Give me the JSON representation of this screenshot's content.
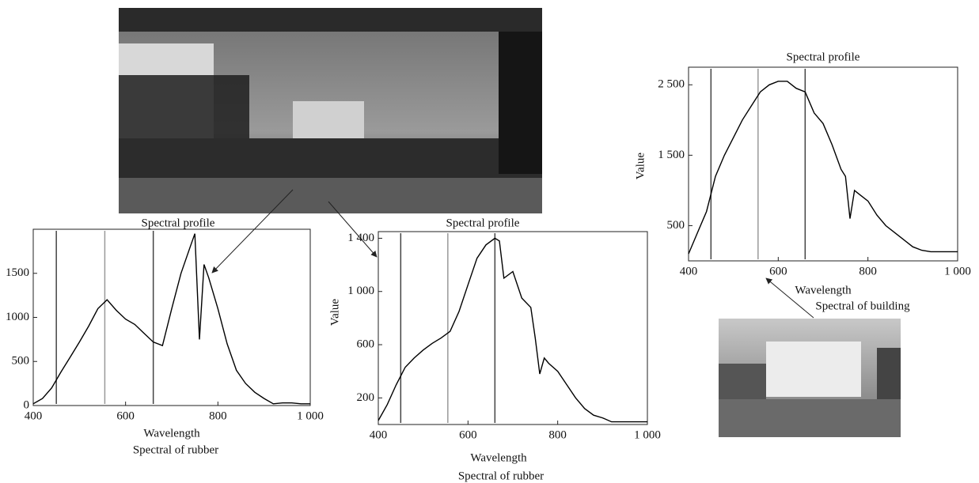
{
  "chart_data": [
    {
      "type": "line",
      "title": "Spectral profile",
      "xlabel": "Wavelength",
      "caption": "Spectral of rubber",
      "x": [
        400,
        420,
        440,
        460,
        480,
        500,
        520,
        540,
        560,
        580,
        600,
        620,
        640,
        660,
        680,
        700,
        720,
        740,
        750,
        760,
        770,
        780,
        800,
        820,
        840,
        860,
        880,
        900,
        920,
        940,
        960,
        980,
        1000
      ],
      "values": [
        20,
        80,
        200,
        380,
        550,
        720,
        900,
        1100,
        1200,
        1080,
        980,
        920,
        820,
        720,
        680,
        1100,
        1500,
        1800,
        1950,
        750,
        1600,
        1450,
        1100,
        700,
        400,
        250,
        150,
        80,
        20,
        30,
        30,
        20,
        20
      ],
      "vlines": [
        450,
        555,
        660
      ],
      "xlim": [
        400,
        1000
      ],
      "xticks": [
        400,
        600,
        800,
        {
          "value": 1000,
          "label": "1 000"
        }
      ],
      "ylim": [
        0,
        2000
      ],
      "yticks": [
        0,
        500,
        1000,
        1500
      ],
      "color": "#000000"
    },
    {
      "type": "line",
      "title": "Spectral profile",
      "xlabel": "Wavelength",
      "ylabel": "Value",
      "caption": "Spectral of rubber",
      "x": [
        400,
        420,
        440,
        460,
        480,
        500,
        520,
        540,
        560,
        580,
        600,
        620,
        640,
        660,
        670,
        680,
        700,
        720,
        740,
        750,
        760,
        770,
        780,
        800,
        820,
        840,
        860,
        880,
        900,
        920,
        1000
      ],
      "values": [
        30,
        150,
        300,
        430,
        500,
        560,
        610,
        650,
        700,
        850,
        1050,
        1250,
        1350,
        1400,
        1380,
        1100,
        1150,
        950,
        880,
        650,
        380,
        500,
        460,
        400,
        300,
        200,
        120,
        70,
        50,
        20,
        20
      ],
      "vlines": [
        450,
        555,
        660
      ],
      "xlim": [
        400,
        1000
      ],
      "xticks": [
        400,
        600,
        800,
        {
          "value": 1000,
          "label": "1 000"
        }
      ],
      "ylim": [
        0,
        1450
      ],
      "yticks": [
        200,
        600,
        {
          "value": 1000,
          "label": "1 000"
        },
        {
          "value": 1400,
          "label": "1 400"
        }
      ],
      "color": "#000000"
    },
    {
      "type": "line",
      "title": "Spectral profile",
      "xlabel": "Wavelength",
      "ylabel": "Value",
      "caption": "Spectral of building",
      "x": [
        400,
        420,
        440,
        460,
        480,
        500,
        520,
        540,
        560,
        580,
        600,
        620,
        640,
        660,
        680,
        700,
        720,
        740,
        750,
        760,
        770,
        780,
        800,
        820,
        840,
        860,
        880,
        900,
        920,
        940,
        960,
        980,
        1000
      ],
      "values": [
        100,
        400,
        700,
        1200,
        1500,
        1750,
        2000,
        2200,
        2400,
        2500,
        2550,
        2550,
        2450,
        2400,
        2100,
        1950,
        1650,
        1300,
        1200,
        600,
        1000,
        950,
        850,
        650,
        500,
        400,
        300,
        200,
        150,
        130,
        130,
        130,
        130
      ],
      "vlines": [
        450,
        555,
        660
      ],
      "xlim": [
        400,
        1000
      ],
      "xticks": [
        400,
        600,
        800,
        {
          "value": 1000,
          "label": "1 000"
        }
      ],
      "ylim": [
        0,
        2750
      ],
      "yticks": [
        500,
        {
          "value": 1500,
          "label": "1 500"
        },
        {
          "value": 2500,
          "label": "2 500"
        }
      ],
      "color": "#000000"
    }
  ]
}
